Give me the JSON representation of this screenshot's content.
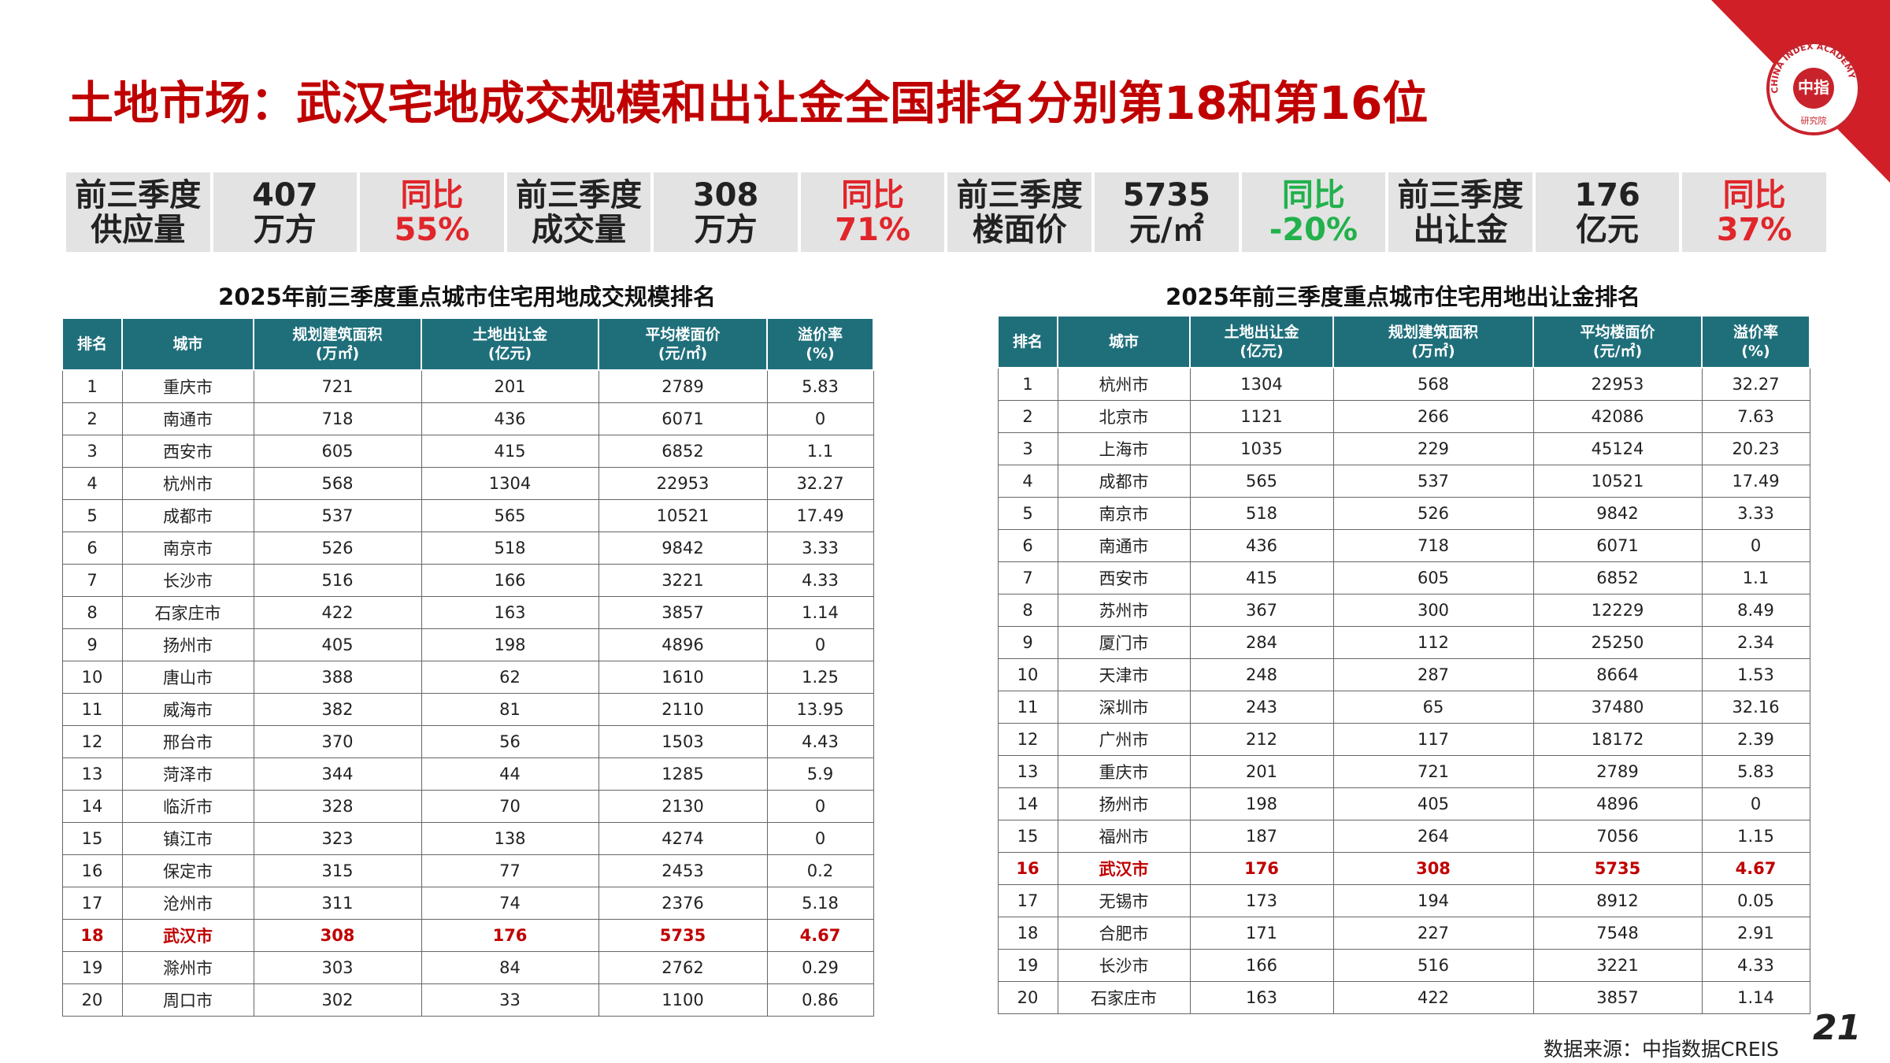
{
  "title": "土地市场：武汉宅地成交规模和出让金全国排名分别第18和第16位",
  "logo": {
    "name": "中指",
    "ring": "CHINA INDEX ACADEMY",
    "sub": "研究院"
  },
  "summary": [
    {
      "metric": [
        "前三季度",
        "供应量"
      ],
      "value": [
        "407",
        "万方"
      ],
      "change": [
        "同比",
        "55%"
      ],
      "change_color": "#e0262b"
    },
    {
      "metric": [
        "前三季度",
        "成交量"
      ],
      "value": [
        "308",
        "万方"
      ],
      "change": [
        "同比",
        "71%"
      ],
      "change_color": "#e0262b"
    },
    {
      "metric": [
        "前三季度",
        "楼面价"
      ],
      "value": [
        "5735",
        "元/㎡"
      ],
      "change": [
        "同比",
        "-20%"
      ],
      "change_color": "#22b14c"
    },
    {
      "metric": [
        "前三季度",
        "出让金"
      ],
      "value": [
        "176",
        "亿元"
      ],
      "change": [
        "同比",
        "37%"
      ],
      "change_color": "#e0262b"
    }
  ],
  "tables": [
    {
      "title": "2025年前三季度重点城市住宅用地成交规模排名",
      "header": [
        [
          "排名"
        ],
        [
          "城市"
        ],
        [
          "规划建筑面积",
          "(万㎡)"
        ],
        [
          "土地出让金",
          "(亿元)"
        ],
        [
          "平均楼面价",
          "(元/㎡)"
        ],
        [
          "溢价率",
          "(%)"
        ]
      ],
      "rows": [
        [
          1,
          "重庆市",
          721,
          201,
          2789,
          5.83
        ],
        [
          2,
          "南通市",
          718,
          436,
          6071,
          0
        ],
        [
          3,
          "西安市",
          605,
          415,
          6852,
          1.1
        ],
        [
          4,
          "杭州市",
          568,
          1304,
          22953,
          32.27
        ],
        [
          5,
          "成都市",
          537,
          565,
          10521,
          17.49
        ],
        [
          6,
          "南京市",
          526,
          518,
          9842,
          3.33
        ],
        [
          7,
          "长沙市",
          516,
          166,
          3221,
          4.33
        ],
        [
          8,
          "石家庄市",
          422,
          163,
          3857,
          1.14
        ],
        [
          9,
          "扬州市",
          405,
          198,
          4896,
          0
        ],
        [
          10,
          "唐山市",
          388,
          62,
          1610,
          1.25
        ],
        [
          11,
          "威海市",
          382,
          81,
          2110,
          13.95
        ],
        [
          12,
          "邢台市",
          370,
          56,
          1503,
          4.43
        ],
        [
          13,
          "菏泽市",
          344,
          44,
          1285,
          5.9
        ],
        [
          14,
          "临沂市",
          328,
          70,
          2130,
          0
        ],
        [
          15,
          "镇江市",
          323,
          138,
          4274,
          0
        ],
        [
          16,
          "保定市",
          315,
          77,
          2453,
          0.2
        ],
        [
          17,
          "沧州市",
          311,
          74,
          2376,
          5.18
        ],
        [
          18,
          "武汉市",
          308,
          176,
          5735,
          4.67
        ],
        [
          19,
          "滁州市",
          303,
          84,
          2762,
          0.29
        ],
        [
          20,
          "周口市",
          302,
          33,
          1100,
          0.86
        ]
      ]
    },
    {
      "title": "2025年前三季度重点城市住宅用地出让金排名",
      "header": [
        [
          "排名"
        ],
        [
          "城市"
        ],
        [
          "土地出让金",
          "(亿元)"
        ],
        [
          "规划建筑面积",
          "(万㎡)"
        ],
        [
          "平均楼面价",
          "(元/㎡)"
        ],
        [
          "溢价率",
          "(%)"
        ]
      ],
      "rows": [
        [
          1,
          "杭州市",
          1304,
          568,
          22953,
          32.27
        ],
        [
          2,
          "北京市",
          1121,
          266,
          42086,
          7.63
        ],
        [
          3,
          "上海市",
          1035,
          229,
          45124,
          20.23
        ],
        [
          4,
          "成都市",
          565,
          537,
          10521,
          17.49
        ],
        [
          5,
          "南京市",
          518,
          526,
          9842,
          3.33
        ],
        [
          6,
          "南通市",
          436,
          718,
          6071,
          0
        ],
        [
          7,
          "西安市",
          415,
          605,
          6852,
          1.1
        ],
        [
          8,
          "苏州市",
          367,
          300,
          12229,
          8.49
        ],
        [
          9,
          "厦门市",
          284,
          112,
          25250,
          2.34
        ],
        [
          10,
          "天津市",
          248,
          287,
          8664,
          1.53
        ],
        [
          11,
          "深圳市",
          243,
          65,
          37480,
          32.16
        ],
        [
          12,
          "广州市",
          212,
          117,
          18172,
          2.39
        ],
        [
          13,
          "重庆市",
          201,
          721,
          2789,
          5.83
        ],
        [
          14,
          "扬州市",
          198,
          405,
          4896,
          0
        ],
        [
          15,
          "福州市",
          187,
          264,
          7056,
          1.15
        ],
        [
          16,
          "武汉市",
          176,
          308,
          5735,
          4.67
        ],
        [
          17,
          "无锡市",
          173,
          194,
          8912,
          0.05
        ],
        [
          18,
          "合肥市",
          171,
          227,
          7548,
          2.91
        ],
        [
          19,
          "长沙市",
          166,
          516,
          3221,
          4.33
        ],
        [
          20,
          "石家庄市",
          163,
          422,
          3857,
          1.14
        ]
      ]
    }
  ],
  "source": "数据来源：中指数据CREIS",
  "page_number": "21"
}
